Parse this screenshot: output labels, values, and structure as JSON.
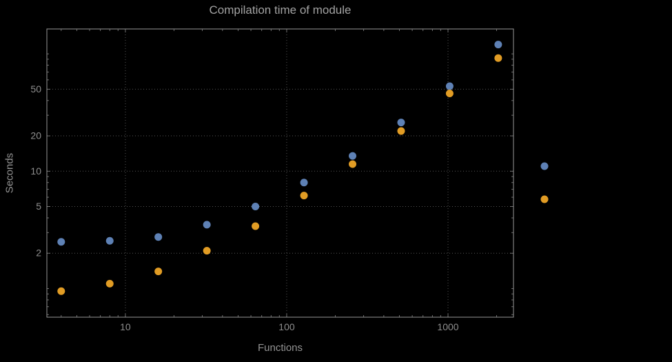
{
  "chart_data": {
    "type": "scatter",
    "title": "Compilation time of module",
    "xlabel": "Functions",
    "ylabel": "Seconds",
    "x_scale": "log",
    "y_scale": "log",
    "grid": "dotted",
    "legend_position": "right",
    "x_ticks": [
      10,
      100,
      1000
    ],
    "y_ticks": [
      2,
      5,
      10,
      20,
      50
    ],
    "x_range": [
      3.26,
      2546
    ],
    "y_range": [
      0.57,
      163
    ],
    "x": [
      4,
      8,
      16,
      32,
      64,
      128,
      256,
      512,
      1024,
      2048
    ],
    "series": [
      {
        "name": "blue",
        "color": "#5e81b5",
        "values": [
          2.5,
          2.55,
          2.75,
          3.5,
          5.0,
          8.0,
          13.5,
          26,
          53,
          120
        ]
      },
      {
        "name": "orange",
        "color": "#e19c24",
        "values": [
          0.95,
          1.1,
          1.4,
          2.1,
          3.4,
          6.2,
          11.5,
          22,
          46,
          92
        ]
      }
    ]
  },
  "style": {
    "frame_color": "#989898",
    "grid_color": "#575757",
    "tick_color": "#8a8a8a",
    "background": "#000000"
  }
}
